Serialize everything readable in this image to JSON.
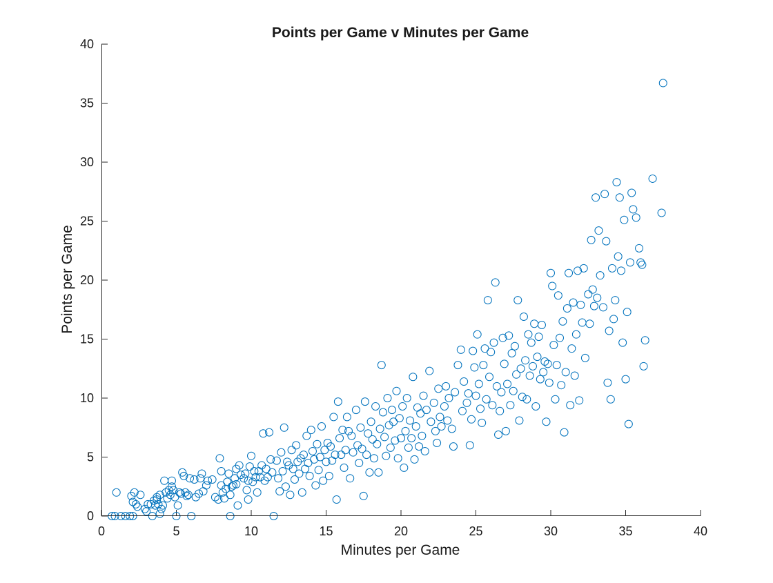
{
  "chart_data": {
    "type": "scatter",
    "title": "Points per Game v Minutes per Game",
    "xlabel": "Minutes per Game",
    "ylabel": "Points per Game",
    "xlim": [
      0,
      40
    ],
    "ylim": [
      0,
      40
    ],
    "xticks": [
      "0",
      "5",
      "10",
      "15",
      "20",
      "25",
      "30",
      "35",
      "40"
    ],
    "yticks": [
      "0",
      "5",
      "10",
      "15",
      "20",
      "25",
      "30",
      "35",
      "40"
    ],
    "grid": false,
    "marker": "circle",
    "color": "#0072BD",
    "points": [
      [
        0.7,
        0
      ],
      [
        0.9,
        0
      ],
      [
        1.0,
        2.0
      ],
      [
        1.3,
        0
      ],
      [
        1.6,
        0
      ],
      [
        1.9,
        0
      ],
      [
        2.1,
        0
      ],
      [
        2.0,
        1.7
      ],
      [
        2.2,
        2.0
      ],
      [
        2.3,
        1.0
      ],
      [
        2.1,
        1.2
      ],
      [
        2.4,
        0.8
      ],
      [
        2.6,
        1.8
      ],
      [
        2.9,
        0.6
      ],
      [
        3.0,
        0.4
      ],
      [
        3.1,
        1.0
      ],
      [
        3.3,
        1.0
      ],
      [
        3.4,
        0
      ],
      [
        3.5,
        1.3
      ],
      [
        3.6,
        0.9
      ],
      [
        3.7,
        1.4
      ],
      [
        3.7,
        1.6
      ],
      [
        3.8,
        1.0
      ],
      [
        3.9,
        0.2
      ],
      [
        4.0,
        0.6
      ],
      [
        3.9,
        1.8
      ],
      [
        4.1,
        0.9
      ],
      [
        4.2,
        3.0
      ],
      [
        4.3,
        2.0
      ],
      [
        4.4,
        1.5
      ],
      [
        4.5,
        2.2
      ],
      [
        4.6,
        1.8
      ],
      [
        4.7,
        2.5
      ],
      [
        4.7,
        3.0
      ],
      [
        4.8,
        2.2
      ],
      [
        4.9,
        1.6
      ],
      [
        5.0,
        0
      ],
      [
        5.1,
        0.9
      ],
      [
        5.2,
        2.0
      ],
      [
        5.3,
        1.9
      ],
      [
        5.4,
        3.7
      ],
      [
        5.5,
        3.4
      ],
      [
        5.6,
        2.0
      ],
      [
        5.7,
        1.7
      ],
      [
        5.8,
        1.8
      ],
      [
        5.9,
        3.2
      ],
      [
        6.0,
        0
      ],
      [
        6.2,
        3.1
      ],
      [
        6.3,
        1.6
      ],
      [
        6.5,
        1.9
      ],
      [
        6.6,
        3.2
      ],
      [
        6.7,
        3.6
      ],
      [
        6.8,
        2.1
      ],
      [
        7.0,
        2.6
      ],
      [
        7.1,
        3.0
      ],
      [
        7.4,
        3.1
      ],
      [
        7.6,
        1.6
      ],
      [
        7.8,
        1.4
      ],
      [
        7.9,
        4.9
      ],
      [
        8.0,
        3.8
      ],
      [
        8.0,
        2.6
      ],
      [
        8.1,
        2.0
      ],
      [
        8.2,
        1.5
      ],
      [
        8.3,
        2.3
      ],
      [
        8.4,
        2.9
      ],
      [
        8.5,
        3.6
      ],
      [
        8.6,
        1.8
      ],
      [
        8.6,
        0
      ],
      [
        8.7,
        2.5
      ],
      [
        8.8,
        2.6
      ],
      [
        8.9,
        3.2
      ],
      [
        9.0,
        2.7
      ],
      [
        9.0,
        4.0
      ],
      [
        9.1,
        0.9
      ],
      [
        9.2,
        4.3
      ],
      [
        9.3,
        3.5
      ],
      [
        9.5,
        3.2
      ],
      [
        9.6,
        3.6
      ],
      [
        9.7,
        2.2
      ],
      [
        9.8,
        1.4
      ],
      [
        9.8,
        3.0
      ],
      [
        9.9,
        4.2
      ],
      [
        10.0,
        5.1
      ],
      [
        10.1,
        2.9
      ],
      [
        10.2,
        3.8
      ],
      [
        10.3,
        3.3
      ],
      [
        10.4,
        2.0
      ],
      [
        10.5,
        3.8
      ],
      [
        10.6,
        3.3
      ],
      [
        10.7,
        4.3
      ],
      [
        10.8,
        7.0
      ],
      [
        10.9,
        3.0
      ],
      [
        11.0,
        4.0
      ],
      [
        11.1,
        3.3
      ],
      [
        11.2,
        7.1
      ],
      [
        11.3,
        4.8
      ],
      [
        11.4,
        3.7
      ],
      [
        11.5,
        0
      ],
      [
        11.7,
        4.7
      ],
      [
        11.8,
        3.2
      ],
      [
        11.9,
        2.1
      ],
      [
        12.0,
        5.4
      ],
      [
        12.1,
        3.8
      ],
      [
        12.2,
        7.5
      ],
      [
        12.3,
        2.5
      ],
      [
        12.4,
        4.6
      ],
      [
        12.5,
        4.3
      ],
      [
        12.6,
        1.8
      ],
      [
        12.7,
        5.6
      ],
      [
        12.8,
        4.0
      ],
      [
        12.9,
        3.1
      ],
      [
        13.0,
        6.0
      ],
      [
        13.1,
        4.6
      ],
      [
        13.2,
        3.6
      ],
      [
        13.3,
        4.9
      ],
      [
        13.4,
        2.0
      ],
      [
        13.5,
        5.2
      ],
      [
        13.6,
        4.0
      ],
      [
        13.7,
        6.8
      ],
      [
        13.8,
        4.5
      ],
      [
        13.9,
        3.4
      ],
      [
        14.0,
        7.3
      ],
      [
        14.1,
        5.5
      ],
      [
        14.2,
        4.8
      ],
      [
        14.3,
        2.6
      ],
      [
        14.4,
        6.1
      ],
      [
        14.5,
        3.9
      ],
      [
        14.6,
        5.0
      ],
      [
        14.7,
        7.6
      ],
      [
        14.8,
        3.0
      ],
      [
        14.9,
        5.6
      ],
      [
        15.0,
        4.6
      ],
      [
        15.1,
        6.2
      ],
      [
        15.2,
        3.4
      ],
      [
        15.3,
        5.9
      ],
      [
        15.4,
        4.7
      ],
      [
        15.5,
        8.4
      ],
      [
        15.6,
        5.2
      ],
      [
        15.7,
        1.4
      ],
      [
        15.8,
        9.7
      ],
      [
        15.9,
        6.6
      ],
      [
        16.0,
        5.2
      ],
      [
        16.1,
        7.3
      ],
      [
        16.2,
        4.1
      ],
      [
        16.3,
        5.6
      ],
      [
        16.4,
        8.4
      ],
      [
        16.5,
        7.2
      ],
      [
        16.6,
        3.2
      ],
      [
        16.7,
        6.8
      ],
      [
        16.8,
        5.4
      ],
      [
        17.0,
        9.0
      ],
      [
        17.1,
        6.0
      ],
      [
        17.2,
        4.5
      ],
      [
        17.3,
        7.5
      ],
      [
        17.4,
        5.7
      ],
      [
        17.5,
        1.7
      ],
      [
        17.6,
        9.7
      ],
      [
        17.7,
        5.2
      ],
      [
        17.8,
        7.0
      ],
      [
        17.9,
        3.7
      ],
      [
        18.0,
        8.0
      ],
      [
        18.1,
        6.5
      ],
      [
        18.2,
        4.9
      ],
      [
        18.3,
        9.3
      ],
      [
        18.4,
        6.1
      ],
      [
        18.5,
        3.7
      ],
      [
        18.6,
        7.4
      ],
      [
        18.7,
        12.8
      ],
      [
        18.8,
        8.8
      ],
      [
        18.9,
        6.7
      ],
      [
        19.0,
        5.1
      ],
      [
        19.1,
        10.0
      ],
      [
        19.2,
        7.7
      ],
      [
        19.3,
        5.8
      ],
      [
        19.4,
        9.0
      ],
      [
        19.5,
        8.0
      ],
      [
        19.6,
        6.4
      ],
      [
        19.7,
        10.6
      ],
      [
        19.8,
        4.9
      ],
      [
        19.9,
        8.3
      ],
      [
        20.0,
        6.6
      ],
      [
        20.1,
        9.3
      ],
      [
        20.2,
        4.1
      ],
      [
        20.3,
        7.2
      ],
      [
        20.4,
        10.0
      ],
      [
        20.5,
        5.8
      ],
      [
        20.6,
        8.1
      ],
      [
        20.7,
        6.6
      ],
      [
        20.8,
        11.8
      ],
      [
        20.9,
        4.8
      ],
      [
        21.0,
        7.6
      ],
      [
        21.1,
        9.2
      ],
      [
        21.2,
        5.9
      ],
      [
        21.3,
        8.7
      ],
      [
        21.4,
        6.8
      ],
      [
        21.5,
        10.2
      ],
      [
        21.6,
        5.5
      ],
      [
        21.7,
        9.0
      ],
      [
        21.9,
        12.3
      ],
      [
        22.0,
        8.0
      ],
      [
        22.2,
        9.6
      ],
      [
        22.3,
        7.2
      ],
      [
        22.4,
        6.2
      ],
      [
        22.5,
        10.8
      ],
      [
        22.6,
        8.4
      ],
      [
        22.7,
        7.6
      ],
      [
        22.9,
        9.3
      ],
      [
        23.0,
        11.0
      ],
      [
        23.1,
        8.1
      ],
      [
        23.2,
        10.0
      ],
      [
        23.4,
        7.4
      ],
      [
        23.5,
        5.9
      ],
      [
        23.6,
        10.5
      ],
      [
        23.8,
        12.8
      ],
      [
        24.0,
        14.1
      ],
      [
        24.1,
        8.9
      ],
      [
        24.2,
        11.4
      ],
      [
        24.4,
        9.6
      ],
      [
        24.5,
        10.4
      ],
      [
        24.6,
        6.0
      ],
      [
        24.7,
        8.2
      ],
      [
        24.8,
        14.0
      ],
      [
        24.9,
        12.6
      ],
      [
        25.0,
        10.2
      ],
      [
        25.1,
        15.4
      ],
      [
        25.2,
        11.2
      ],
      [
        25.3,
        9.1
      ],
      [
        25.4,
        7.9
      ],
      [
        25.5,
        12.8
      ],
      [
        25.6,
        14.2
      ],
      [
        25.7,
        9.9
      ],
      [
        25.8,
        18.3
      ],
      [
        25.9,
        11.8
      ],
      [
        26.0,
        13.9
      ],
      [
        26.1,
        9.4
      ],
      [
        26.2,
        14.7
      ],
      [
        26.3,
        19.8
      ],
      [
        26.4,
        11.0
      ],
      [
        26.5,
        6.9
      ],
      [
        26.6,
        8.9
      ],
      [
        26.7,
        10.5
      ],
      [
        26.8,
        15.1
      ],
      [
        26.9,
        12.9
      ],
      [
        27.0,
        7.2
      ],
      [
        27.1,
        11.2
      ],
      [
        27.2,
        15.3
      ],
      [
        27.3,
        9.4
      ],
      [
        27.4,
        13.8
      ],
      [
        27.5,
        10.6
      ],
      [
        27.6,
        14.4
      ],
      [
        27.7,
        12.0
      ],
      [
        27.8,
        18.3
      ],
      [
        27.9,
        8.1
      ],
      [
        28.0,
        12.5
      ],
      [
        28.1,
        10.1
      ],
      [
        28.2,
        16.9
      ],
      [
        28.3,
        13.2
      ],
      [
        28.4,
        9.9
      ],
      [
        28.5,
        15.4
      ],
      [
        28.6,
        11.9
      ],
      [
        28.7,
        14.7
      ],
      [
        28.8,
        12.7
      ],
      [
        28.9,
        16.3
      ],
      [
        29.0,
        9.3
      ],
      [
        29.1,
        13.5
      ],
      [
        29.2,
        15.2
      ],
      [
        29.3,
        11.6
      ],
      [
        29.4,
        16.2
      ],
      [
        29.5,
        12.2
      ],
      [
        29.6,
        13.1
      ],
      [
        29.7,
        8.0
      ],
      [
        29.8,
        12.9
      ],
      [
        29.9,
        11.3
      ],
      [
        30.0,
        20.6
      ],
      [
        30.1,
        19.5
      ],
      [
        30.2,
        14.5
      ],
      [
        30.3,
        9.9
      ],
      [
        30.4,
        12.8
      ],
      [
        30.5,
        18.7
      ],
      [
        30.6,
        15.1
      ],
      [
        30.7,
        11.1
      ],
      [
        30.8,
        16.5
      ],
      [
        30.9,
        7.1
      ],
      [
        31.0,
        12.2
      ],
      [
        31.1,
        17.6
      ],
      [
        31.2,
        20.6
      ],
      [
        31.3,
        9.4
      ],
      [
        31.4,
        14.2
      ],
      [
        31.5,
        18.1
      ],
      [
        31.6,
        11.9
      ],
      [
        31.7,
        15.4
      ],
      [
        31.8,
        20.8
      ],
      [
        31.9,
        9.8
      ],
      [
        32.0,
        17.9
      ],
      [
        32.1,
        16.4
      ],
      [
        32.2,
        21.0
      ],
      [
        32.3,
        13.4
      ],
      [
        32.5,
        18.8
      ],
      [
        32.6,
        16.3
      ],
      [
        32.7,
        23.4
      ],
      [
        32.8,
        19.2
      ],
      [
        32.9,
        17.8
      ],
      [
        33.0,
        27.0
      ],
      [
        33.1,
        18.5
      ],
      [
        33.2,
        24.2
      ],
      [
        33.3,
        20.4
      ],
      [
        33.5,
        17.7
      ],
      [
        33.6,
        27.3
      ],
      [
        33.7,
        23.3
      ],
      [
        33.8,
        11.3
      ],
      [
        33.9,
        15.7
      ],
      [
        34.0,
        9.9
      ],
      [
        34.1,
        21.0
      ],
      [
        34.2,
        16.7
      ],
      [
        34.3,
        18.3
      ],
      [
        34.4,
        28.3
      ],
      [
        34.5,
        22.0
      ],
      [
        34.6,
        27.0
      ],
      [
        34.7,
        20.8
      ],
      [
        34.8,
        14.7
      ],
      [
        34.9,
        25.1
      ],
      [
        35.0,
        11.6
      ],
      [
        35.1,
        17.3
      ],
      [
        35.2,
        7.8
      ],
      [
        35.3,
        21.5
      ],
      [
        35.4,
        27.4
      ],
      [
        35.5,
        26.0
      ],
      [
        35.7,
        25.3
      ],
      [
        35.9,
        22.7
      ],
      [
        36.0,
        21.5
      ],
      [
        36.1,
        21.3
      ],
      [
        36.2,
        12.7
      ],
      [
        36.3,
        14.9
      ],
      [
        36.8,
        28.6
      ],
      [
        37.4,
        25.7
      ],
      [
        37.5,
        36.7
      ]
    ]
  }
}
